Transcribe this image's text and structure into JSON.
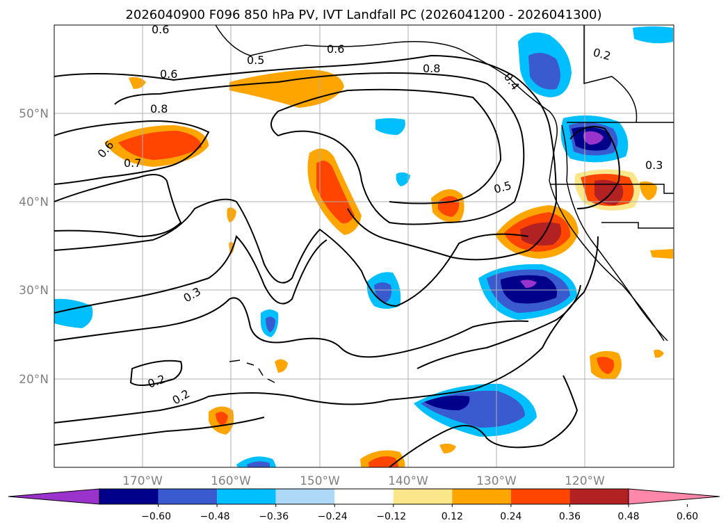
{
  "title": "2026040900 F096 850 hPa PV, IVT Landfall PC (2026041200 - 2026041300)",
  "lat_labels": [
    "50°N",
    "40°N",
    "30°N",
    "20°N"
  ],
  "lon_labels": [
    "170°W",
    "160°W",
    "150°W",
    "140°W",
    "130°W",
    "120°W"
  ],
  "contour_labels": [
    "0.6",
    "0.5",
    "0.6",
    "0.8",
    "0.4",
    "0.2",
    "0.6",
    "0.8",
    "0.6",
    "0.7",
    "0.3",
    "0.5",
    "0.3",
    "0.2",
    "0.2"
  ],
  "colorbar": {
    "tick_labels": [
      "−0.60",
      "−0.48",
      "−0.36",
      "−0.24",
      "−0.12",
      "0.12",
      "0.24",
      "0.36",
      "0.48",
      "0.60"
    ],
    "colors": [
      "#9933cc",
      "#00008b",
      "#3a5bd0",
      "#00bfff",
      "#add8f7",
      "#ffffff",
      "#fbe68a",
      "#ffa500",
      "#ff4500",
      "#b22222",
      "#ff88aa"
    ]
  },
  "map": {
    "extent_lon": [
      -180,
      -110
    ],
    "extent_lat": [
      10,
      60
    ],
    "contour_color": "#000000",
    "grid": true
  }
}
